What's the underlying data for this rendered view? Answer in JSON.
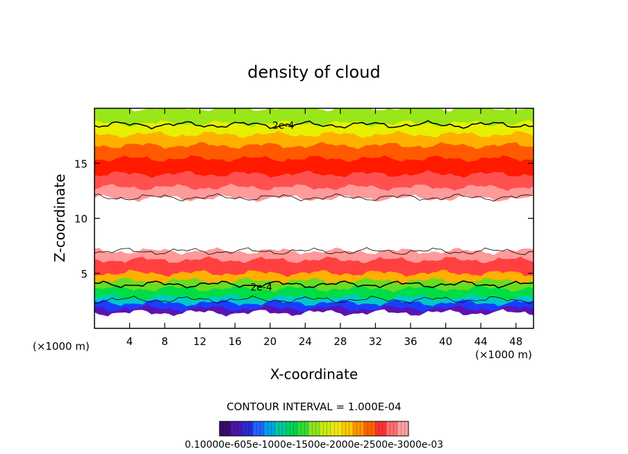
{
  "chart_data": {
    "type": "heatmap",
    "title": "density of cloud",
    "xlabel": "X-coordinate",
    "ylabel": "Z-coordinate",
    "x_unit_left": "(×1000 m)",
    "x_unit_right": "(×1000 m)",
    "xlim": [
      0,
      50
    ],
    "ylim": [
      0,
      20
    ],
    "x_ticks": [
      4,
      8,
      12,
      16,
      20,
      24,
      28,
      32,
      36,
      40,
      44,
      48
    ],
    "y_ticks": [
      5,
      10,
      15
    ],
    "contour_labels": [
      "2e-4",
      "2e-4"
    ],
    "contour_interval_text": "CONTOUR INTERVAL = 1.000E-04",
    "colorbar_text": "0.10000e-605e-1000e-1500e-2000e-2500e-3000e-03",
    "bands": [
      {
        "z_top": 20.0,
        "z_bottom": 18.6,
        "color": "#99e619"
      },
      {
        "z_top": 18.6,
        "z_bottom": 17.6,
        "color": "#e6f000"
      },
      {
        "z_top": 17.6,
        "z_bottom": 16.6,
        "color": "#ffb000"
      },
      {
        "z_top": 16.6,
        "z_bottom": 15.4,
        "color": "#ff5a00"
      },
      {
        "z_top": 15.4,
        "z_bottom": 14.0,
        "color": "#ff1a00"
      },
      {
        "z_top": 14.0,
        "z_bottom": 12.8,
        "color": "#ff5050"
      },
      {
        "z_top": 12.8,
        "z_bottom": 11.8,
        "color": "#ff9a9a"
      },
      {
        "z_top": 11.8,
        "z_bottom": 7.0,
        "color": "#ffffff"
      },
      {
        "z_top": 7.0,
        "z_bottom": 6.2,
        "color": "#ff9a9a"
      },
      {
        "z_top": 6.2,
        "z_bottom": 5.0,
        "color": "#ff4040"
      },
      {
        "z_top": 5.0,
        "z_bottom": 4.3,
        "color": "#ffb000"
      },
      {
        "z_top": 4.3,
        "z_bottom": 3.6,
        "color": "#66dd22"
      },
      {
        "z_top": 3.6,
        "z_bottom": 2.8,
        "color": "#00dd44"
      },
      {
        "z_top": 2.8,
        "z_bottom": 2.3,
        "color": "#00c8c8"
      },
      {
        "z_top": 2.3,
        "z_bottom": 1.8,
        "color": "#1a3cff"
      },
      {
        "z_top": 1.8,
        "z_bottom": 1.4,
        "color": "#5a14b4"
      },
      {
        "z_top": 1.4,
        "z_bottom": 0.0,
        "color": "#ffffff"
      }
    ],
    "contour_lines": [
      {
        "z": 18.5,
        "label_index": 0,
        "label_x": 21.5
      },
      {
        "z": 11.9
      },
      {
        "z": 7.0
      },
      {
        "z": 4.0,
        "label_index": 1,
        "label_x": 19.0
      },
      {
        "z": 2.6
      }
    ],
    "colorbar_colors": [
      "#3a0a6a",
      "#4a16a6",
      "#2a2ad0",
      "#1e64ff",
      "#00a0e6",
      "#00c8a0",
      "#00d25a",
      "#32dc32",
      "#8ce61e",
      "#c8eb14",
      "#f0e614",
      "#ffc800",
      "#ff9600",
      "#ff6400",
      "#ff3232",
      "#ff6e6e",
      "#ffa0a0"
    ]
  }
}
